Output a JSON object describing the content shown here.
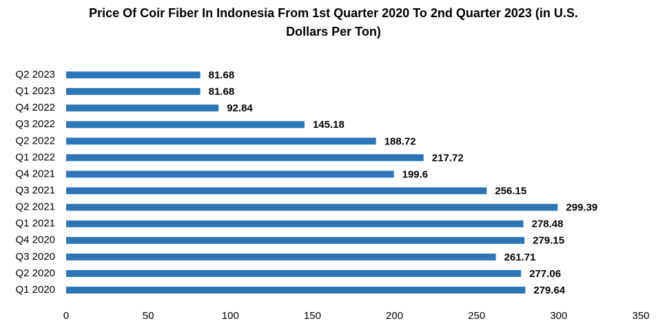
{
  "chart_data": {
    "type": "barh",
    "title": "Price Of Coir Fiber In Indonesia From 1st Quarter 2020 To 2nd Quarter 2023 (in U.S. Dollars Per Ton)",
    "categories": [
      "Q1 2020",
      "Q2 2020",
      "Q3 2020",
      "Q4 2020",
      "Q1 2021",
      "Q2 2021",
      "Q3 2021",
      "Q4 2021",
      "Q1 2022",
      "Q2 2022",
      "Q3 2022",
      "Q4 2022",
      "Q1 2023",
      "Q2 2023"
    ],
    "values": [
      279.64,
      277.06,
      261.71,
      279.15,
      278.48,
      299.39,
      256.15,
      199.6,
      217.72,
      188.72,
      145.18,
      92.84,
      81.68,
      81.68
    ],
    "color": "#2e75b6",
    "xlim": [
      0,
      350
    ],
    "xticks": [
      0,
      50,
      100,
      150,
      200,
      250,
      300,
      350
    ],
    "grid": false
  }
}
